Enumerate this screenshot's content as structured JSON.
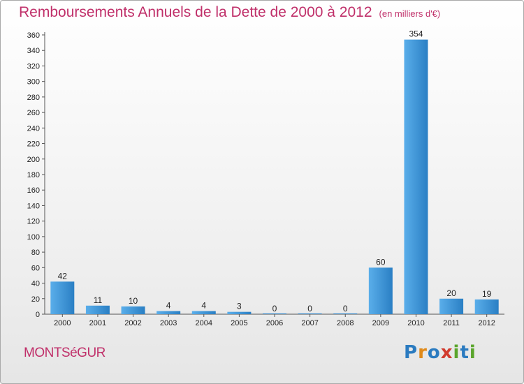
{
  "header": {
    "title": "Remboursements Annuels de la Dette de 2000 à 2012",
    "unit": "(en milliers d'€)"
  },
  "footer": {
    "commune": "MONTSéGUR",
    "logo_letters": [
      "P",
      "r",
      "o",
      "x",
      "i",
      "t",
      "i"
    ]
  },
  "colors": {
    "title": "#c0306a",
    "bar_light": "#5aaeea",
    "bar_dark": "#2a7fc4",
    "logo": [
      "#2b7bc0",
      "#e08a1a",
      "#2b7bc0",
      "#d13b2e",
      "#5aa52c",
      "#2b7bc0",
      "#5aa52c"
    ]
  },
  "chart_data": {
    "type": "bar",
    "title": "Remboursements Annuels de la Dette de 2000 à 2012",
    "ylabel": "(en milliers d'€)",
    "categories": [
      "2000",
      "2001",
      "2002",
      "2003",
      "2004",
      "2005",
      "2006",
      "2007",
      "2008",
      "2009",
      "2010",
      "2011",
      "2012"
    ],
    "values": [
      42,
      11,
      10,
      4,
      4,
      3,
      0,
      0,
      0,
      60,
      354,
      20,
      19
    ],
    "ylim": [
      0,
      360
    ],
    "yticks": [
      0,
      20,
      40,
      60,
      80,
      100,
      120,
      140,
      160,
      180,
      200,
      220,
      240,
      260,
      280,
      300,
      320,
      340,
      360
    ],
    "grid": false,
    "legend": "none"
  }
}
